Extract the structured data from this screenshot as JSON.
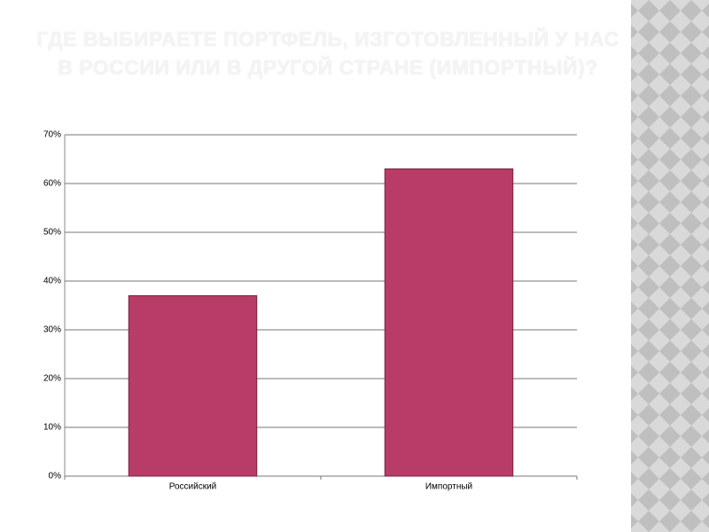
{
  "chart_data": {
    "type": "bar",
    "title": "ГДЕ ВЫБИРАЕТЕ ПОРТФЕЛЬ, ИЗГОТОВЛЕННЫЙ У НАС В РОССИИ ИЛИ В ДРУГОЙ СТРАНЕ (ИМПОРТНЫЙ)?",
    "categories": [
      "Российский",
      "Импортный"
    ],
    "values": [
      37,
      63
    ],
    "color": "#b83c68",
    "ylim": [
      0,
      70
    ],
    "yticks": [
      {
        "value": 0,
        "label": "0%"
      },
      {
        "value": 10,
        "label": "10%"
      },
      {
        "value": 20,
        "label": "20%"
      },
      {
        "value": 30,
        "label": "30%"
      },
      {
        "value": 40,
        "label": "40%"
      },
      {
        "value": 50,
        "label": "50%"
      },
      {
        "value": 60,
        "label": "60%"
      },
      {
        "value": 70,
        "label": "70%"
      }
    ],
    "grid": true
  }
}
